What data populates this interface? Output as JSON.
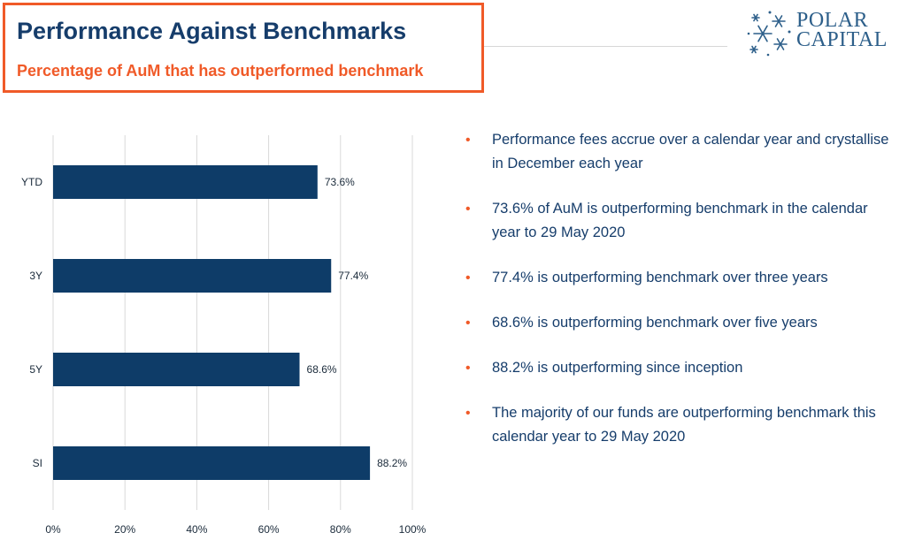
{
  "header": {
    "title": "Performance Against Benchmarks",
    "subtitle": "Percentage of AuM that has outperformed benchmark"
  },
  "logo": {
    "line1": "POLAR",
    "line2": "CAPITAL",
    "icon": "snowflake-cluster-icon"
  },
  "colors": {
    "navy": "#163d6b",
    "bar": "#0e3c68",
    "orange": "#f05a28",
    "logo_blue": "#2d5f8a"
  },
  "bullets": [
    "Performance fees accrue over a calendar year and crystallise in December each year",
    "73.6% of AuM is outperforming benchmark in the calendar year to 29 May 2020",
    "77.4% is outperforming benchmark over three years",
    "68.6% is outperforming benchmark over five years",
    "88.2% is outperforming since inception",
    "The majority of our funds are outperforming benchmark this calendar year to 29 May 2020"
  ],
  "chart_data": {
    "type": "bar",
    "orientation": "horizontal",
    "categories": [
      "YTD",
      "3Y",
      "5Y",
      "SI"
    ],
    "values": [
      73.6,
      77.4,
      68.6,
      88.2
    ],
    "data_labels": [
      "73.6%",
      "77.4%",
      "68.6%",
      "88.2%"
    ],
    "xlim": [
      0,
      100
    ],
    "x_ticks": [
      "0%",
      "20%",
      "40%",
      "60%",
      "80%",
      "100%"
    ],
    "x_tick_values": [
      0,
      20,
      40,
      60,
      80,
      100
    ],
    "grid": "vertical",
    "title": "",
    "xlabel": "",
    "ylabel": ""
  }
}
